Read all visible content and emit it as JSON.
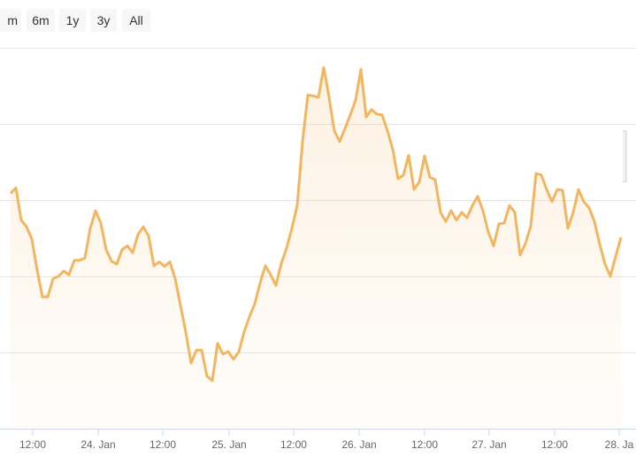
{
  "range_buttons": [
    "m",
    "6m",
    "1y",
    "3y",
    "All"
  ],
  "chart_data": {
    "type": "line",
    "color": "#f2b661",
    "grid": true,
    "ylim": [
      0,
      5
    ],
    "yticks": [
      1,
      2,
      3,
      4,
      5
    ],
    "xlim": [
      0,
      116
    ],
    "xticks": [
      {
        "value": 4.17,
        "label": "12:00"
      },
      {
        "value": 16.5,
        "label": "24. Jan"
      },
      {
        "value": 28.67,
        "label": "12:00"
      },
      {
        "value": 41.17,
        "label": "25. Jan"
      },
      {
        "value": 53.33,
        "label": "12:00"
      },
      {
        "value": 65.67,
        "label": "26. Jan"
      },
      {
        "value": 78,
        "label": "12:00"
      },
      {
        "value": 90.17,
        "label": "27. Jan"
      },
      {
        "value": 102.5,
        "label": "12:00"
      },
      {
        "value": 114.67,
        "label": "28. Ja"
      }
    ],
    "values": [
      3.09,
      3.16,
      2.74,
      2.65,
      2.49,
      2.08,
      1.73,
      1.73,
      1.97,
      2.0,
      2.07,
      2.02,
      2.21,
      2.21,
      2.24,
      2.63,
      2.86,
      2.7,
      2.35,
      2.2,
      2.16,
      2.35,
      2.4,
      2.31,
      2.55,
      2.65,
      2.53,
      2.14,
      2.19,
      2.13,
      2.19,
      1.97,
      1.62,
      1.27,
      0.86,
      1.03,
      1.03,
      0.69,
      0.63,
      1.12,
      0.98,
      1.01,
      0.91,
      1.01,
      1.27,
      1.47,
      1.64,
      1.91,
      2.14,
      2.02,
      1.88,
      2.17,
      2.37,
      2.63,
      2.93,
      3.77,
      4.38,
      4.37,
      4.35,
      4.74,
      4.35,
      3.91,
      3.77,
      3.94,
      4.12,
      4.31,
      4.72,
      4.09,
      4.19,
      4.13,
      4.12,
      3.91,
      3.67,
      3.28,
      3.33,
      3.59,
      3.14,
      3.24,
      3.58,
      3.3,
      3.27,
      2.84,
      2.72,
      2.86,
      2.74,
      2.84,
      2.77,
      2.93,
      3.05,
      2.86,
      2.58,
      2.4,
      2.69,
      2.7,
      2.93,
      2.84,
      2.28,
      2.43,
      2.66,
      3.35,
      3.33,
      3.14,
      2.98,
      3.14,
      3.13,
      2.63,
      2.84,
      3.14,
      2.98,
      2.9,
      2.72,
      2.42,
      2.16,
      2.0,
      2.26,
      2.51
    ]
  }
}
